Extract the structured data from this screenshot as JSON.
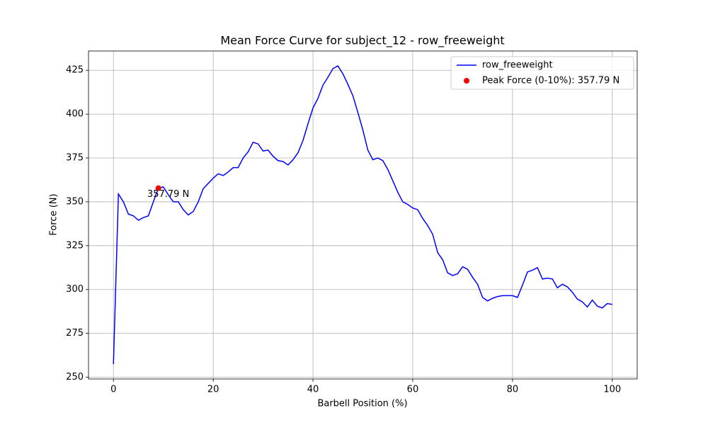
{
  "chart_data": {
    "type": "line",
    "title": "Mean Force Curve for subject_12 - row_freeweight",
    "x_label": "Barbell Position (%)",
    "y_label": "Force (N)",
    "xlim": [
      -5,
      105
    ],
    "ylim": [
      249,
      436
    ],
    "xticks": [
      0,
      20,
      40,
      60,
      80,
      100
    ],
    "yticks": [
      250,
      275,
      300,
      325,
      350,
      375,
      400,
      425
    ],
    "grid": true,
    "legend": "upper right",
    "series": [
      {
        "name": "row_freeweight",
        "type": "line",
        "color": "#0000ff",
        "x": [
          0,
          1,
          2,
          3,
          4,
          5,
          6,
          7,
          8,
          9,
          10,
          11,
          12,
          13,
          14,
          15,
          16,
          17,
          18,
          19,
          20,
          21,
          22,
          23,
          24,
          25,
          26,
          27,
          28,
          29,
          30,
          31,
          32,
          33,
          34,
          35,
          36,
          37,
          38,
          39,
          40,
          41,
          42,
          43,
          44,
          45,
          46,
          47,
          48,
          49,
          50,
          51,
          52,
          53,
          54,
          55,
          56,
          57,
          58,
          59,
          60,
          61,
          62,
          63,
          64,
          65,
          66,
          67,
          68,
          69,
          70,
          71,
          72,
          73,
          74,
          75,
          76,
          77,
          78,
          79,
          80,
          81,
          82,
          83,
          84,
          85,
          86,
          87,
          88,
          89,
          90,
          91,
          92,
          93,
          94,
          95,
          96,
          97,
          98,
          99,
          100
        ],
        "values": [
          257.5,
          354.5,
          350,
          343,
          342,
          339.5,
          341,
          342,
          350,
          357.79,
          358.5,
          354,
          350,
          350,
          345.5,
          342.5,
          344.5,
          350,
          357.5,
          360.5,
          363.5,
          366,
          365,
          367,
          369.5,
          369.5,
          375,
          378.5,
          384,
          383,
          379,
          379.5,
          376,
          373.5,
          373,
          371,
          374,
          378,
          385,
          394.5,
          403.5,
          409,
          416.5,
          421,
          426,
          427.5,
          423,
          417,
          410.5,
          401,
          391,
          379.5,
          374,
          375,
          373.5,
          368.5,
          362,
          355.5,
          350,
          348.5,
          346.5,
          345.5,
          340.5,
          336.5,
          331.5,
          321,
          317,
          309.5,
          308,
          309,
          313,
          311.5,
          307,
          303,
          295.5,
          293.5,
          295,
          296,
          296.5,
          296.5,
          296.5,
          295.5,
          302.5,
          310,
          311,
          312.5,
          306,
          306.5,
          306,
          301,
          303,
          301.5,
          298.5,
          294.5,
          293,
          290,
          294,
          290.5,
          289.5,
          292,
          291.5
        ]
      },
      {
        "name": "Peak Force (0-10%): 357.79 N",
        "type": "scatter",
        "color": "#ff0000",
        "x": [
          9
        ],
        "values": [
          357.79
        ],
        "value_labels": [
          "357.79 N"
        ]
      }
    ]
  }
}
